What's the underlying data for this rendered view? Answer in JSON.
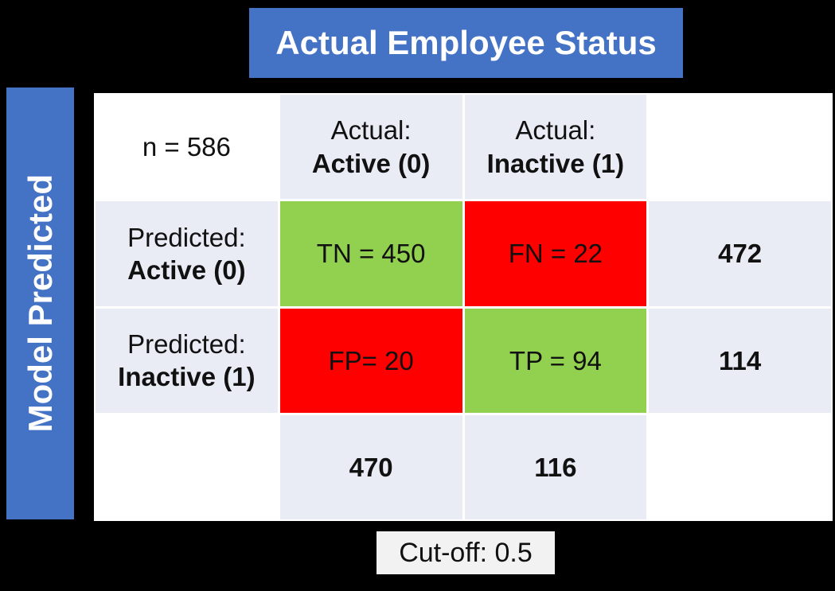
{
  "banner": {
    "title": "Actual Employee Status"
  },
  "side_banner": {
    "title": "Model Predicted"
  },
  "cutoff": {
    "label": "Cut-off: 0.5"
  },
  "colors": {
    "banner_blue": "#4472C4",
    "correct_green": "#92D050",
    "error_red": "#FF0000",
    "header_lavender": "#E9EBF5",
    "cutoff_bg": "#F2F2F2",
    "background_black": "#000000"
  },
  "matrix": {
    "sample_size_label": "n = 586",
    "col_headers": [
      {
        "line1": "Actual:",
        "line2": "Active (0)"
      },
      {
        "line1": "Actual:",
        "line2": "Inactive (1)"
      }
    ],
    "row_headers": [
      {
        "line1": "Predicted:",
        "line2": "Active (0)"
      },
      {
        "line1": "Predicted:",
        "line2": "Inactive (1)"
      }
    ],
    "quadrants": {
      "tn": "TN = 450",
      "fn": "FN = 22",
      "fp": "FP= 20",
      "tp": "TP = 94"
    },
    "row_totals": [
      "472",
      "114"
    ],
    "col_totals": [
      "470",
      "116"
    ],
    "values": {
      "n": 586,
      "tn": 450,
      "fn": 22,
      "fp": 20,
      "tp": 94,
      "predicted_active_total": 472,
      "predicted_inactive_total": 114,
      "actual_active_total": 470,
      "actual_inactive_total": 116,
      "cutoff": 0.5
    }
  }
}
